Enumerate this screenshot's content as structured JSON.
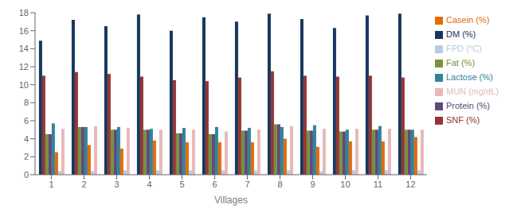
{
  "chart_data": {
    "type": "bar",
    "xlabel": "Villages",
    "categories": [
      "1",
      "2",
      "3",
      "4",
      "5",
      "6",
      "7",
      "8",
      "9",
      "10",
      "11",
      "12"
    ],
    "series": [
      {
        "name": "DM (%)",
        "color": "#17375E",
        "values": [
          14.9,
          17.2,
          16.5,
          17.8,
          16.0,
          17.5,
          17.0,
          17.9,
          17.3,
          16.3,
          17.7,
          17.9
        ]
      },
      {
        "name": "SNF (%)",
        "color": "#943734",
        "values": [
          11.0,
          11.4,
          11.2,
          10.9,
          10.5,
          10.4,
          10.8,
          11.5,
          11.0,
          10.9,
          11.0,
          10.8
        ]
      },
      {
        "name": "Fat (%)",
        "color": "#76923C",
        "values": [
          4.5,
          5.3,
          5.0,
          5.0,
          4.6,
          4.5,
          4.9,
          5.6,
          4.9,
          4.8,
          5.0,
          5.0
        ]
      },
      {
        "name": "Protein (%)",
        "color": "#60497A",
        "values": [
          4.5,
          5.3,
          5.0,
          5.0,
          4.6,
          4.5,
          4.9,
          5.6,
          4.9,
          4.8,
          5.0,
          5.0
        ]
      },
      {
        "name": "Lactose (%)",
        "color": "#31849B",
        "values": [
          5.7,
          5.3,
          5.3,
          5.1,
          5.2,
          5.3,
          5.2,
          5.3,
          5.5,
          5.0,
          5.4,
          5.0
        ]
      },
      {
        "name": "Casein (%)",
        "color": "#E36C09",
        "values": [
          2.5,
          3.3,
          2.9,
          3.8,
          3.6,
          3.6,
          3.6,
          4.0,
          3.1,
          3.7,
          3.7,
          4.2
        ]
      },
      {
        "name": "FPD (°C)",
        "color": "#B8CCE4",
        "values": [
          0.4,
          0.4,
          0.5,
          0.5,
          0.5,
          0.5,
          0.5,
          0.5,
          0.4,
          0.5,
          0.5,
          0.5
        ]
      },
      {
        "name": "MUN (mg/dL)",
        "color": "#E6B9B8",
        "values": [
          5.1,
          5.4,
          5.2,
          5.0,
          5.0,
          4.8,
          5.0,
          5.4,
          5.1,
          5.1,
          5.1,
          5.0
        ]
      }
    ],
    "ylim": [
      0,
      18
    ],
    "yticks": [
      0,
      2,
      4,
      6,
      8,
      10,
      12,
      14,
      16,
      18
    ],
    "grid": false,
    "legend": "right"
  }
}
